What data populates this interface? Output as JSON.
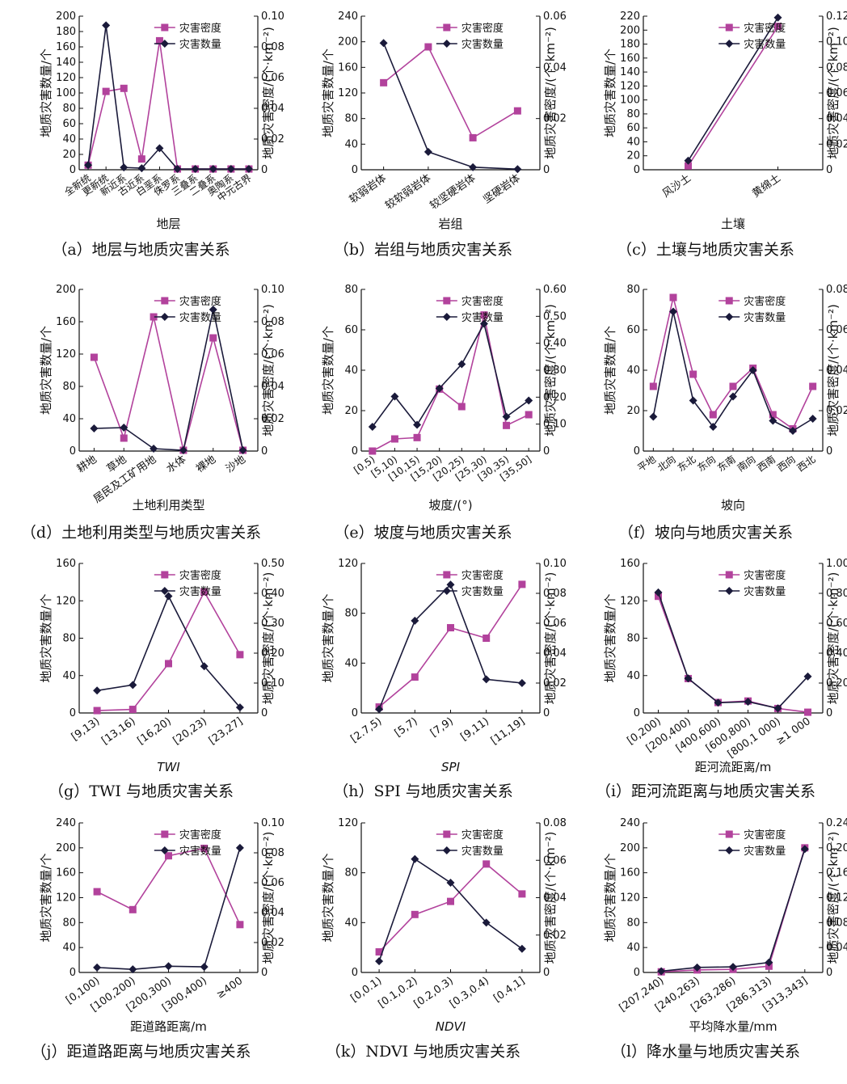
{
  "colors": {
    "density": "#b2429c",
    "count": "#1a1a3a",
    "axis": "#111111"
  },
  "legend": {
    "density": "灾害密度",
    "count": "灾害数量"
  },
  "chart_data": [
    {
      "id": "a",
      "type": "line",
      "caption": "（a）地层与地质灾害关系",
      "xlabel": "地层",
      "xlabel_italic": false,
      "ylabel_left": "地质灾害数量/个",
      "ylabel_right": "地质灾害密度/(个·km⁻²)",
      "categories": [
        "全新统",
        "更新统",
        "新近系",
        "古近系",
        "白垩系",
        "侏罗系",
        "三叠系",
        "二叠系",
        "奥陶系",
        "中元古界"
      ],
      "left_ticks": [
        "0",
        "20",
        "40",
        "60",
        "80",
        "100",
        "120",
        "140",
        "160",
        "180",
        "200"
      ],
      "left_range": [
        0,
        200
      ],
      "right_ticks": [
        "0",
        "0.02",
        "0.04",
        "0.06",
        "0.08",
        "0.10"
      ],
      "right_range": [
        0,
        0.1
      ],
      "series": [
        {
          "name": "灾害密度",
          "axis": "right",
          "values": [
            0.003,
            0.051,
            0.053,
            0.007,
            0.084,
            0.0005,
            0.0005,
            0.0005,
            0.0005,
            0.0005
          ]
        },
        {
          "name": "灾害数量",
          "axis": "left",
          "values": [
            6,
            188,
            3,
            2,
            28,
            1,
            1,
            1,
            1,
            1
          ]
        }
      ]
    },
    {
      "id": "b",
      "type": "line",
      "caption": "（b）岩组与地质灾害关系",
      "xlabel": "岩组",
      "xlabel_italic": false,
      "ylabel_left": "地质灾害数量/个",
      "ylabel_right": "地质灾害密度/(个·km⁻²)",
      "categories": [
        "软弱岩体",
        "较软弱岩体",
        "较坚硬岩体",
        "坚硬岩体"
      ],
      "left_ticks": [
        "0",
        "40",
        "80",
        "120",
        "160",
        "200",
        "240"
      ],
      "left_range": [
        0,
        240
      ],
      "right_ticks": [
        "0",
        "0.02",
        "0.04",
        "0.06"
      ],
      "right_range": [
        0,
        0.06
      ],
      "series": [
        {
          "name": "灾害密度",
          "axis": "right",
          "values": [
            0.034,
            0.048,
            0.0125,
            0.023
          ]
        },
        {
          "name": "灾害数量",
          "axis": "left",
          "values": [
            198,
            28,
            4,
            1
          ]
        }
      ]
    },
    {
      "id": "c",
      "type": "line",
      "caption": "（c）土壤与地质灾害关系",
      "xlabel": "土壤",
      "xlabel_italic": false,
      "ylabel_left": "地质灾害数量/个",
      "ylabel_right": "地质灾害密度/(个·km⁻²)",
      "categories": [
        "风沙土",
        "黄绵土"
      ],
      "left_ticks": [
        "0",
        "20",
        "40",
        "60",
        "80",
        "100",
        "120",
        "140",
        "160",
        "180",
        "200",
        "220"
      ],
      "left_range": [
        0,
        220
      ],
      "right_ticks": [
        "0",
        "0.02",
        "0.04",
        "0.06",
        "0.08",
        "0.10",
        "0.12"
      ],
      "right_range": [
        0,
        0.12
      ],
      "series": [
        {
          "name": "灾害密度",
          "axis": "right",
          "values": [
            0.003,
            0.112
          ]
        },
        {
          "name": "灾害数量",
          "axis": "left",
          "values": [
            13,
            218
          ]
        }
      ]
    },
    {
      "id": "d",
      "type": "line",
      "caption": "（d）土地利用类型与地质灾害关系",
      "xlabel": "土地利用类型",
      "xlabel_italic": false,
      "ylabel_left": "地质灾害数量/个",
      "ylabel_right": "地质灾害密度/(个·km⁻²)",
      "categories": [
        "耕地",
        "草地",
        "居民及工矿用地",
        "水体",
        "裸地",
        "沙地"
      ],
      "left_ticks": [
        "0",
        "40",
        "80",
        "120",
        "160",
        "200"
      ],
      "left_range": [
        0,
        200
      ],
      "right_ticks": [
        "0",
        "0.02",
        "0.04",
        "0.06",
        "0.08",
        "0.10"
      ],
      "right_range": [
        0,
        0.1
      ],
      "series": [
        {
          "name": "灾害密度",
          "axis": "right",
          "values": [
            0.058,
            0.008,
            0.083,
            0.0005,
            0.07,
            0.0005
          ]
        },
        {
          "name": "灾害数量",
          "axis": "left",
          "values": [
            28,
            29,
            3,
            1,
            175,
            1
          ]
        }
      ]
    },
    {
      "id": "e",
      "type": "line",
      "caption": "（e）坡度与地质灾害关系",
      "xlabel": "坡度/(°)",
      "xlabel_italic": false,
      "ylabel_left": "地质灾害数量/个",
      "ylabel_right": "地质灾害密度/(个·km⁻²)",
      "categories": [
        "[0,5)",
        "[5,10)",
        "[10,15)",
        "[15,20)",
        "[20,25)",
        "[25,30)",
        "[30,35)",
        "[35,50]"
      ],
      "left_ticks": [
        "0",
        "20",
        "40",
        "60",
        "80"
      ],
      "left_range": [
        0,
        80
      ],
      "right_ticks": [
        "0",
        "0.10",
        "0.20",
        "0.30",
        "0.40",
        "0.50",
        "0.60"
      ],
      "right_range": [
        0,
        0.6
      ],
      "series": [
        {
          "name": "灾害密度",
          "axis": "right",
          "values": [
            0.0,
            0.045,
            0.05,
            0.23,
            0.165,
            0.505,
            0.095,
            0.135
          ]
        },
        {
          "name": "灾害数量",
          "axis": "left",
          "values": [
            12,
            27,
            13,
            31,
            43,
            63,
            17,
            25
          ]
        }
      ]
    },
    {
      "id": "f",
      "type": "line",
      "caption": "（f）坡向与地质灾害关系",
      "xlabel": "坡向",
      "xlabel_italic": false,
      "ylabel_left": "地质灾害数量/个",
      "ylabel_right": "地质灾害密度/(个·km⁻²)",
      "categories": [
        "平地",
        "北向",
        "东北",
        "东向",
        "东南",
        "南向",
        "西南",
        "西向",
        "西北"
      ],
      "left_ticks": [
        "0",
        "20",
        "40",
        "60",
        "80"
      ],
      "left_range": [
        0,
        80
      ],
      "right_ticks": [
        "0",
        "0.02",
        "0.04",
        "0.06",
        "0.08"
      ],
      "right_range": [
        0,
        0.08
      ],
      "series": [
        {
          "name": "灾害密度",
          "axis": "right",
          "values": [
            0.032,
            0.076,
            0.038,
            0.018,
            0.032,
            0.041,
            0.018,
            0.011,
            0.032
          ]
        },
        {
          "name": "灾害数量",
          "axis": "left",
          "values": [
            17,
            69,
            25,
            12,
            27,
            40,
            15,
            10,
            16
          ]
        }
      ]
    },
    {
      "id": "g",
      "type": "line",
      "caption": "（g）TWI 与地质灾害关系",
      "xlabel": "TWI",
      "xlabel_italic": true,
      "ylabel_left": "地质灾害数量/个",
      "ylabel_right": "地质灾害密度/(个·km⁻²)",
      "categories": [
        "[9,13)",
        "[13,16)",
        "[16,20)",
        "[20,23)",
        "[23,27]"
      ],
      "left_ticks": [
        "0",
        "40",
        "80",
        "120",
        "160"
      ],
      "left_range": [
        0,
        160
      ],
      "right_ticks": [
        "0",
        "0.10",
        "0.20",
        "0.30",
        "0.40",
        "0.50"
      ],
      "right_range": [
        0,
        0.5
      ],
      "series": [
        {
          "name": "灾害密度",
          "axis": "right",
          "values": [
            0.008,
            0.012,
            0.165,
            0.405,
            0.195
          ]
        },
        {
          "name": "灾害数量",
          "axis": "left",
          "values": [
            24,
            30,
            125,
            50,
            6
          ]
        }
      ]
    },
    {
      "id": "h",
      "type": "line",
      "caption": "（h）SPI 与地质灾害关系",
      "xlabel": "SPI",
      "xlabel_italic": true,
      "ylabel_left": "地质灾害数量/个",
      "ylabel_right": "地质灾害密度/(个·km⁻²)",
      "categories": [
        "[2.7,5)",
        "[5,7)",
        "[7,9)",
        "[9,11)",
        "[11,19]"
      ],
      "left_ticks": [
        "0",
        "40",
        "80",
        "120"
      ],
      "left_range": [
        0,
        120
      ],
      "right_ticks": [
        "0",
        "0.02",
        "0.04",
        "0.06",
        "0.08",
        "0.10"
      ],
      "right_range": [
        0,
        0.1
      ],
      "series": [
        {
          "name": "灾害密度",
          "axis": "right",
          "values": [
            0.004,
            0.024,
            0.057,
            0.05,
            0.086
          ]
        },
        {
          "name": "灾害数量",
          "axis": "left",
          "values": [
            3,
            74,
            103,
            27,
            24
          ]
        }
      ]
    },
    {
      "id": "i",
      "type": "line",
      "caption": "（i）距河流距离与地质灾害关系",
      "xlabel": "距河流距离/m",
      "xlabel_italic": false,
      "ylabel_left": "地质灾害数量/个",
      "ylabel_right": "地质灾害密度/(个·km⁻²)",
      "categories": [
        "[0,200)",
        "[200,400)",
        "[400,600)",
        "[600,800)",
        "[800,1 000)",
        "≥1 000"
      ],
      "left_ticks": [
        "0",
        "40",
        "80",
        "120",
        "160"
      ],
      "left_range": [
        0,
        160
      ],
      "right_ticks": [
        "0",
        "0.20",
        "0.40",
        "0.60",
        "0.80",
        "1.00"
      ],
      "right_range": [
        0,
        1.0
      ],
      "series": [
        {
          "name": "灾害密度",
          "axis": "right",
          "values": [
            0.78,
            0.23,
            0.07,
            0.08,
            0.03,
            0.005
          ]
        },
        {
          "name": "灾害数量",
          "axis": "left",
          "values": [
            129,
            37,
            11,
            12,
            5,
            39
          ]
        }
      ]
    },
    {
      "id": "j",
      "type": "line",
      "caption": "（j）距道路距离与地质灾害关系",
      "xlabel": "距道路距离/m",
      "xlabel_italic": false,
      "ylabel_left": "地质灾害数量/个",
      "ylabel_right": "地质灾害密度/(个·km⁻²)",
      "categories": [
        "[0,100)",
        "[100,200)",
        "[200,300)",
        "[300,400)",
        "≥400"
      ],
      "left_ticks": [
        "0",
        "40",
        "80",
        "120",
        "160",
        "200",
        "240"
      ],
      "left_range": [
        0,
        240
      ],
      "right_ticks": [
        "0",
        "0.02",
        "0.04",
        "0.06",
        "0.08",
        "0.10"
      ],
      "right_range": [
        0,
        0.1
      ],
      "series": [
        {
          "name": "灾害密度",
          "axis": "right",
          "values": [
            0.054,
            0.042,
            0.078,
            0.083,
            0.032
          ]
        },
        {
          "name": "灾害数量",
          "axis": "left",
          "values": [
            8,
            5,
            10,
            9,
            200
          ]
        }
      ]
    },
    {
      "id": "k",
      "type": "line",
      "caption": "（k）NDVI 与地质灾害关系",
      "xlabel": "NDVI",
      "xlabel_italic": true,
      "ylabel_left": "地质灾害数量/个",
      "ylabel_right": "地质灾害密度/(个·km⁻²)",
      "categories": [
        "[0,0.1)",
        "[0.1,0.2)",
        "[0.2,0.3)",
        "[0.3,0.4)",
        "[0.4,1]"
      ],
      "left_ticks": [
        "0",
        "40",
        "80",
        "120"
      ],
      "left_range": [
        0,
        120
      ],
      "right_ticks": [
        "0",
        "0.02",
        "0.04",
        "0.06",
        "0.08"
      ],
      "right_range": [
        0,
        0.08
      ],
      "series": [
        {
          "name": "灾害密度",
          "axis": "right",
          "values": [
            0.011,
            0.031,
            0.038,
            0.058,
            0.042
          ]
        },
        {
          "name": "灾害数量",
          "axis": "left",
          "values": [
            9,
            91,
            72,
            40,
            19
          ]
        }
      ]
    },
    {
      "id": "l",
      "type": "line",
      "caption": "（l）降水量与地质灾害关系",
      "xlabel": "平均降水量/mm",
      "xlabel_italic": false,
      "ylabel_left": "地质灾害数量/个",
      "ylabel_right": "地质灾害密度/(个·km⁻²)",
      "categories": [
        "[207,240)",
        "[240,263)",
        "[263,286)",
        "[286,313)",
        "[313,343]"
      ],
      "left_ticks": [
        "0",
        "40",
        "80",
        "120",
        "160",
        "200",
        "240"
      ],
      "left_range": [
        0,
        240
      ],
      "right_ticks": [
        "0",
        "0.04",
        "0.08",
        "0.12",
        "0.16",
        "0.20",
        "0.24"
      ],
      "right_range": [
        0,
        0.24
      ],
      "series": [
        {
          "name": "灾害密度",
          "axis": "right",
          "values": [
            0.001,
            0.004,
            0.005,
            0.01,
            0.2
          ]
        },
        {
          "name": "灾害数量",
          "axis": "left",
          "values": [
            2,
            8,
            9,
            16,
            198
          ]
        }
      ]
    }
  ]
}
